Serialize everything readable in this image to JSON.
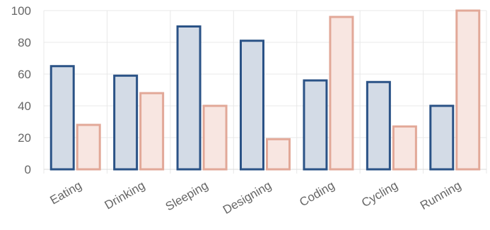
{
  "chart_data": {
    "type": "bar",
    "categories": [
      "Eating",
      "Drinking",
      "Sleeping",
      "Designing",
      "Coding",
      "Cycling",
      "Running"
    ],
    "series": [
      {
        "values": [
          65,
          59,
          90,
          81,
          56,
          55,
          40
        ],
        "fill": "#d3dbe6",
        "stroke": "#2a5286"
      },
      {
        "values": [
          28,
          48,
          40,
          19,
          96,
          27,
          100
        ],
        "fill": "#f8e6e1",
        "stroke": "#e2a898"
      }
    ],
    "title": "",
    "xlabel": "",
    "ylabel": "",
    "ylim": [
      0,
      100
    ],
    "yticks": [
      0,
      20,
      40,
      60,
      80,
      100
    ],
    "grid": true,
    "legend": "none"
  }
}
